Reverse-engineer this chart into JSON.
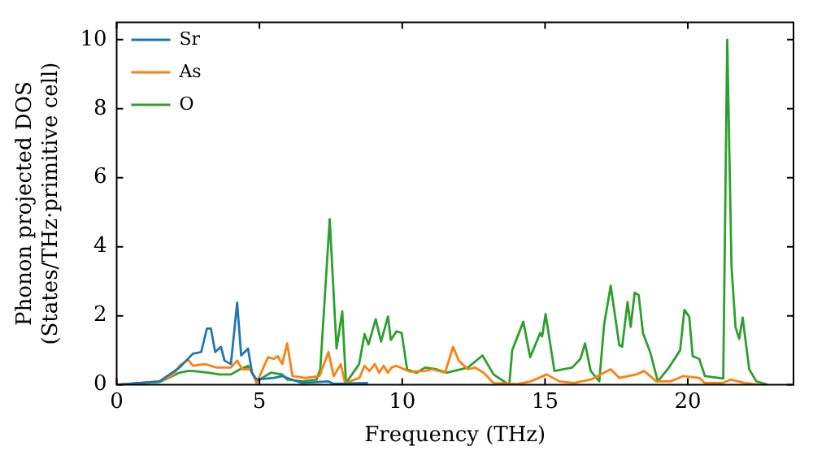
{
  "chart_data": {
    "type": "line",
    "xlabel": "Frequency (THz)",
    "ylabel": "Phonon projected DOS\n(States/THz·primitive cell)",
    "xlim": [
      0,
      23.7
    ],
    "ylim": [
      0,
      10.5
    ],
    "xticks": [
      0,
      5,
      10,
      15,
      20
    ],
    "yticks": [
      0,
      2,
      4,
      6,
      8,
      10
    ],
    "grid": false,
    "legend": "top left",
    "marker": "none",
    "line_style": "solid",
    "series": [
      {
        "name": "Sr",
        "color": "#1f77b4",
        "x": [
          0,
          1.5,
          2.2,
          2.67,
          2.96,
          3.16,
          3.3,
          3.45,
          3.65,
          3.78,
          4.0,
          4.22,
          4.36,
          4.6,
          4.74,
          4.9,
          5.5,
          5.8,
          6.5,
          7.4,
          7.6,
          8.8
        ],
        "values": [
          0,
          0.1,
          0.5,
          0.9,
          0.95,
          1.63,
          1.63,
          0.95,
          1.1,
          0.7,
          0.6,
          2.38,
          0.85,
          1.05,
          0.35,
          0.15,
          0.2,
          0.25,
          0.05,
          0.1,
          0.03,
          0.05
        ]
      },
      {
        "name": "As",
        "color": "#ff7f0e",
        "x": [
          0,
          1.5,
          2.0,
          2.2,
          2.5,
          2.67,
          3.1,
          3.5,
          4.0,
          4.22,
          4.4,
          4.7,
          4.9,
          5.3,
          5.5,
          5.64,
          5.8,
          5.97,
          6.16,
          6.6,
          7.1,
          7.42,
          7.6,
          7.85,
          8.0,
          8.5,
          8.68,
          8.85,
          9.04,
          9.19,
          9.35,
          9.5,
          9.63,
          9.79,
          10.08,
          10.27,
          10.8,
          11.05,
          11.5,
          11.78,
          11.98,
          12.3,
          12.55,
          12.85,
          13.2,
          14.0,
          14.5,
          15.06,
          15.5,
          16.0,
          16.6,
          17.3,
          17.6,
          18.2,
          18.47,
          18.9,
          19.4,
          19.83,
          20.4,
          20.6,
          21.2,
          21.5,
          22.0,
          22.5
        ],
        "values": [
          0,
          0.1,
          0.3,
          0.55,
          0.73,
          0.55,
          0.6,
          0.5,
          0.5,
          0.7,
          0.45,
          0.45,
          0.05,
          0.8,
          0.75,
          0.83,
          0.6,
          1.2,
          0.25,
          0.2,
          0.25,
          0.95,
          0.25,
          0.6,
          0.05,
          0.2,
          0.55,
          0.4,
          0.6,
          0.35,
          0.55,
          0.35,
          0.5,
          0.55,
          0.45,
          0.38,
          0.4,
          0.45,
          0.35,
          1.1,
          0.7,
          0.45,
          0.5,
          0.35,
          0.05,
          0.02,
          0.1,
          0.3,
          0.1,
          0.05,
          0.15,
          0.45,
          0.2,
          0.3,
          0.4,
          0.1,
          0.1,
          0.25,
          0.2,
          0.05,
          0.05,
          0.15,
          0.05,
          0
        ]
      },
      {
        "name": "O",
        "color": "#2ca02c",
        "x": [
          0,
          1.5,
          2.2,
          2.5,
          2.67,
          3.2,
          3.6,
          4.0,
          4.32,
          4.6,
          4.9,
          5.4,
          5.8,
          5.97,
          6.5,
          7.0,
          7.13,
          7.46,
          7.7,
          7.9,
          8.03,
          8.49,
          8.68,
          8.82,
          9.07,
          9.26,
          9.5,
          9.6,
          9.8,
          9.98,
          10.17,
          10.5,
          10.8,
          11.2,
          11.57,
          12.3,
          12.81,
          13.2,
          13.7,
          13.75,
          13.85,
          14.24,
          14.48,
          14.83,
          14.9,
          15.02,
          15.33,
          15.95,
          16.24,
          16.4,
          16.6,
          16.9,
          17.07,
          17.3,
          17.6,
          17.7,
          17.89,
          18.0,
          18.14,
          18.28,
          18.43,
          18.68,
          18.95,
          19.34,
          19.73,
          19.88,
          20.05,
          20.17,
          20.4,
          20.6,
          21.24,
          21.38,
          21.53,
          21.67,
          21.8,
          21.92,
          22.15,
          22.4,
          22.8
        ],
        "values": [
          0,
          0.08,
          0.35,
          0.4,
          0.4,
          0.35,
          0.3,
          0.3,
          0.45,
          0.55,
          0.1,
          0.35,
          0.3,
          0.15,
          0.1,
          0.15,
          0.45,
          4.8,
          1.05,
          2.13,
          0.05,
          0.6,
          1.47,
          1.17,
          1.9,
          1.25,
          1.98,
          1.3,
          1.55,
          1.5,
          0.45,
          0.35,
          0.5,
          0.45,
          0.35,
          0.5,
          0.85,
          0.3,
          0.02,
          0.02,
          1.0,
          1.83,
          0.8,
          1.5,
          1.4,
          2.05,
          0.4,
          0.5,
          0.75,
          1.2,
          0.4,
          0.1,
          1.75,
          2.87,
          1.15,
          1.1,
          2.4,
          1.68,
          2.67,
          2.6,
          1.5,
          0.95,
          0.1,
          0.5,
          1.0,
          2.17,
          1.97,
          0.83,
          0.75,
          0.25,
          0.18,
          10.0,
          3.43,
          1.67,
          1.33,
          1.95,
          0.45,
          0.1,
          0
        ]
      }
    ]
  }
}
